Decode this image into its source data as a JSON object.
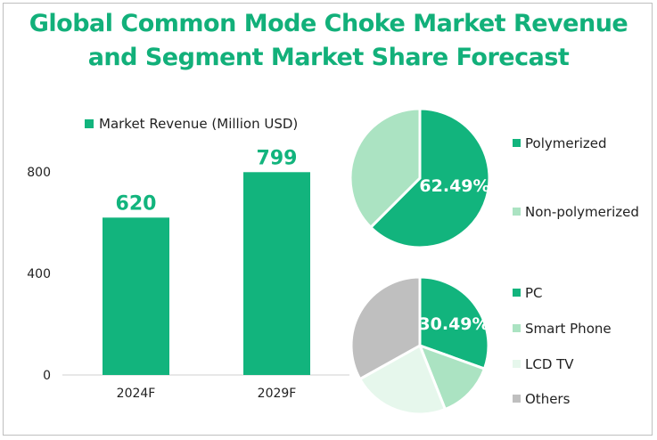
{
  "title_line1": "Global Common Mode Choke Market Revenue",
  "title_line2": "and Segment Market Share Forecast",
  "colors": {
    "primary": "#12b47d",
    "light": "#abe3c2",
    "lighter": "#e6f7ec",
    "gray": "#bfbfbf",
    "title": "#12b07a"
  },
  "chart_data": [
    {
      "type": "bar",
      "legend": "Market Revenue (Million USD)",
      "categories": [
        "2024F",
        "2029F"
      ],
      "values": [
        620,
        799
      ],
      "value_labels": [
        "620",
        "799"
      ],
      "yticks": [
        "0",
        "400",
        "800"
      ],
      "ylim": [
        0,
        800
      ]
    },
    {
      "type": "pie",
      "labels": [
        "Polymerized",
        "Non-polymerized"
      ],
      "values": [
        62.49,
        37.51
      ],
      "data_label": "62.49%"
    },
    {
      "type": "pie",
      "labels": [
        "PC",
        "Smart Phone",
        "LCD TV",
        "Others"
      ],
      "values": [
        30.49,
        13.5,
        22.9,
        33.11
      ],
      "data_label": "30.49%"
    }
  ]
}
